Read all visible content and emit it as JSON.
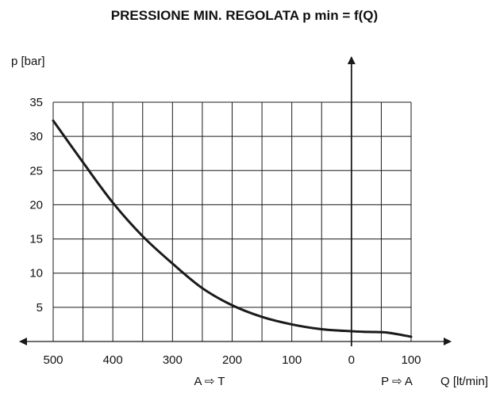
{
  "chart_data": {
    "type": "line",
    "title": "PRESSIONE MIN. REGOLATA p min = f(Q)",
    "ylabel": "p [bar]",
    "xlabel": "Q [lt/min]",
    "x_direction_left": "A ⇨ T",
    "x_direction_right": "P ⇨ A",
    "xlim": [
      500,
      -100
    ],
    "ylim": [
      0,
      35
    ],
    "x_ticks": [
      {
        "value": 500,
        "label": "500"
      },
      {
        "value": 400,
        "label": "400"
      },
      {
        "value": 300,
        "label": "300"
      },
      {
        "value": 200,
        "label": "200"
      },
      {
        "value": 100,
        "label": "100"
      },
      {
        "value": 0,
        "label": "0"
      },
      {
        "value": -100,
        "label": "100"
      }
    ],
    "y_ticks": [
      {
        "value": 5,
        "label": "5"
      },
      {
        "value": 10,
        "label": "10"
      },
      {
        "value": 15,
        "label": "15"
      },
      {
        "value": 20,
        "label": "20"
      },
      {
        "value": 25,
        "label": "25"
      },
      {
        "value": 30,
        "label": "30"
      },
      {
        "value": 35,
        "label": "35"
      }
    ],
    "grid": true,
    "series": [
      {
        "x": [
          500,
          450,
          400,
          350,
          300,
          250,
          200,
          150,
          100,
          50,
          0,
          -30,
          -60,
          -100
        ],
        "y": [
          32.3,
          26.2,
          20.3,
          15.4,
          11.4,
          7.8,
          5.3,
          3.6,
          2.5,
          1.8,
          1.5,
          1.4,
          1.3,
          0.7
        ]
      }
    ],
    "colors": {
      "line": "#1a1a1a",
      "grid": "#1a1a1a",
      "axis": "#1a1a1a"
    }
  }
}
